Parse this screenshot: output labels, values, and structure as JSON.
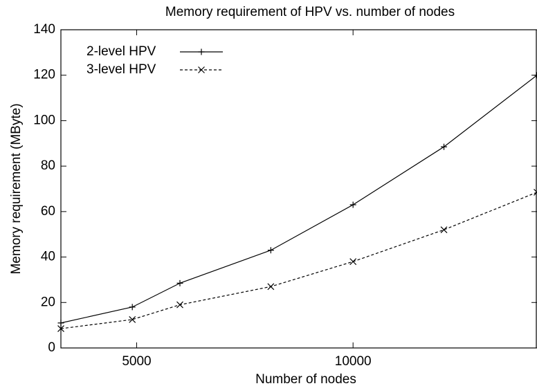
{
  "chart_data": {
    "type": "line",
    "title": "Memory requirement of HPV vs. number of nodes",
    "x_label": "Number of nodes",
    "y_label": "Memory requirement (MByte)",
    "x": [
      3250,
      4900,
      6000,
      8100,
      10000,
      12100,
      14250
    ],
    "series": [
      {
        "name": "2-level HPV",
        "color": "#000000",
        "marker": "plus",
        "dash": false,
        "values": [
          11,
          18,
          28.5,
          43,
          63,
          88.5,
          120
        ]
      },
      {
        "name": "3-level HPV",
        "color": "#000000",
        "marker": "cross",
        "dash": true,
        "values": [
          8.5,
          12.5,
          19,
          27,
          38,
          52,
          68.5
        ]
      }
    ],
    "xlim": [
      3250,
      14250
    ],
    "xticks": [
      5000,
      10000
    ],
    "ylim": [
      0,
      140
    ],
    "yticks": [
      0,
      20,
      40,
      60,
      80,
      100,
      120,
      140
    ],
    "legend": "upper-left",
    "grid": false
  }
}
